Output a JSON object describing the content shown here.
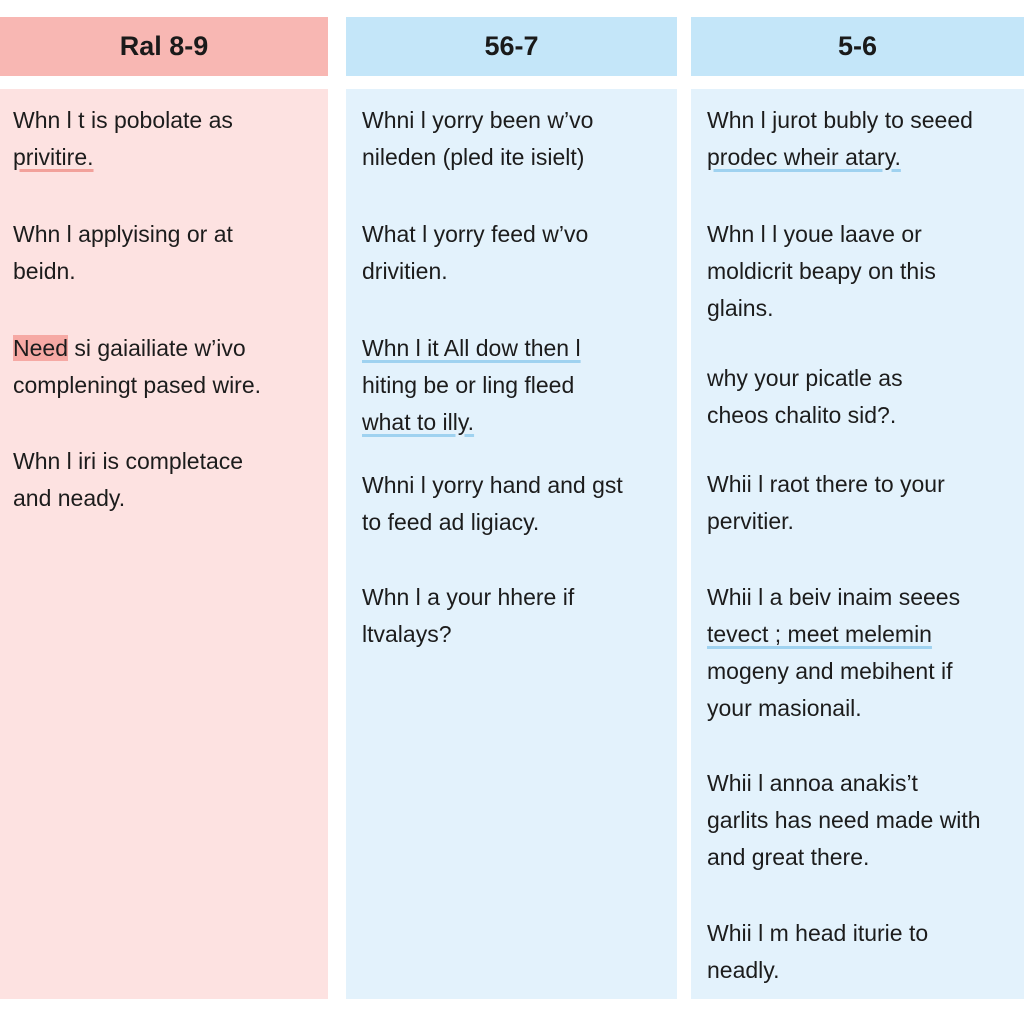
{
  "columns": [
    {
      "header": "Ral 8-9",
      "entries": [
        [
          "Whn l  t is pobolate as",
          "privitire."
        ],
        [
          "Whn l applyising or at",
          "beidn."
        ],
        [
          "Need",
          "si gaiailiate w’ivo",
          "compleningt pased wire."
        ],
        [
          "Whn l iri is completace",
          "and neady."
        ]
      ]
    },
    {
      "header": "56-7",
      "entries": [
        [
          "Whni  l yorry been w’vo",
          "nileden (pled ite isielt)"
        ],
        [
          "What  l yorry feed w’vo",
          "drivitien."
        ],
        [
          "Whn l it All dow then l",
          "hiting be or ling fleed",
          "what to illy."
        ],
        [
          "Whni  l yorry hand and gst",
          "to feed ad ligiacy."
        ],
        [
          "Whn l  a your hhere if",
          "ltvalays?"
        ]
      ]
    },
    {
      "header": "5-6",
      "entries": [
        [
          "Whn l  jurot bubly to seeed",
          "prodec wheir atary."
        ],
        [
          "Whn l l youe laave or",
          "moldicrit beapy on this",
          "glains."
        ],
        [
          "why your picatle as",
          "cheos chalito sid?."
        ],
        [
          "Whii l  raot there to your",
          "pervitier."
        ],
        [
          "Whii l  a beiv inaim seees",
          "tevect ; meet melemin",
          "mogeny and mebihent if",
          "your masionail."
        ],
        [
          "Whii l  annoa anakis’t",
          "garlits has need made with",
          "and great there."
        ],
        [
          "Whii l  m head iturie to",
          "neadly."
        ]
      ]
    }
  ]
}
